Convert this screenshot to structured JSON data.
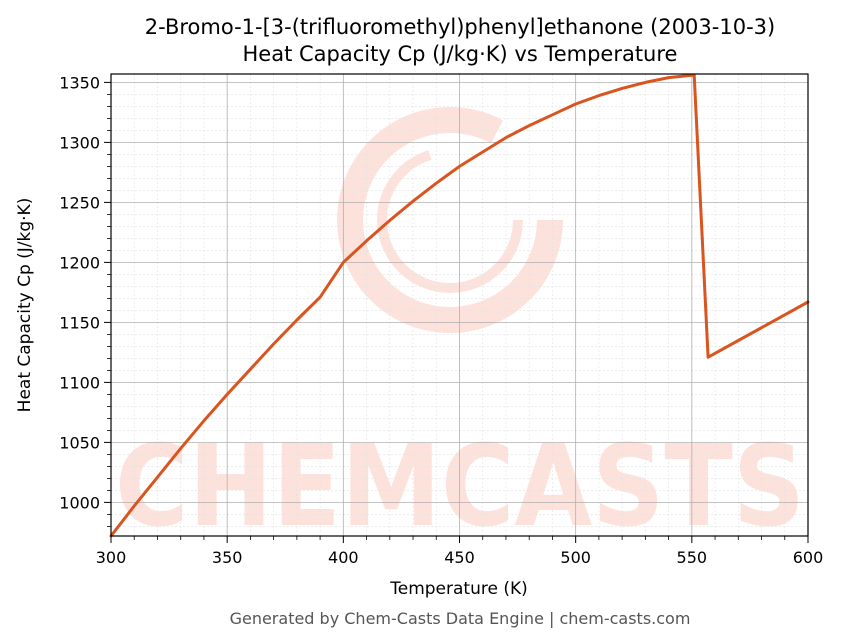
{
  "chart_data": {
    "type": "line",
    "title_line1": "2-Bromo-1-[3-(trifluoromethyl)phenyl]ethanone (2003-10-3)",
    "title_line2": "Heat Capacity Cp (J/kg·K) vs Temperature",
    "xlabel": "Temperature (K)",
    "ylabel": "Heat Capacity Cp (J/kg·K)",
    "xlim": [
      300,
      600
    ],
    "ylim": [
      972,
      1357
    ],
    "x_ticks": [
      300,
      350,
      400,
      450,
      500,
      550,
      600
    ],
    "y_ticks": [
      1000,
      1050,
      1100,
      1150,
      1200,
      1250,
      1300,
      1350
    ],
    "grid": true,
    "line_color": "#d9541e",
    "watermark_color": "#fde2dc",
    "series": [
      {
        "x": [
          300,
          310,
          320,
          330,
          340,
          350,
          360,
          370,
          380,
          390,
          400,
          410,
          420,
          430,
          440,
          450,
          460,
          470,
          480,
          490,
          500,
          510,
          520,
          530,
          540,
          550,
          551,
          557,
          600
        ],
        "values": [
          972,
          997,
          1021,
          1045,
          1068,
          1090,
          1111,
          1132,
          1152,
          1171,
          1200,
          1218,
          1235,
          1251,
          1266,
          1280,
          1292,
          1304,
          1314,
          1323,
          1332,
          1339,
          1345,
          1350,
          1354,
          1356,
          1356,
          1121,
          1167
        ]
      }
    ]
  },
  "watermark": {
    "text": "CHEMCASTS"
  },
  "footer": {
    "text": "Generated by Chem-Casts Data Engine | chem-casts.com"
  }
}
